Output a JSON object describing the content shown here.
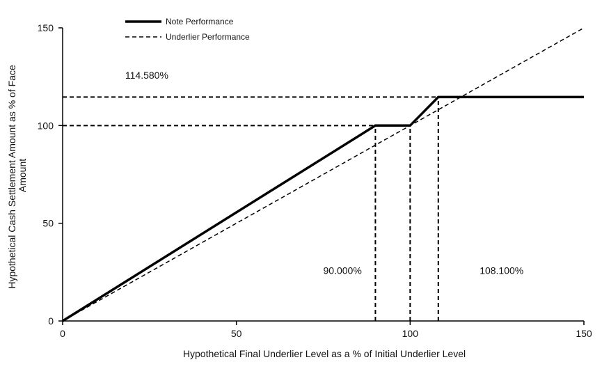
{
  "chart_data": {
    "type": "line",
    "xlabel": "Hypothetical Final Underlier Level as a % of Initial Underlier Level",
    "ylabel_lines": [
      "Hypothetical Cash Settlement Amount as % of Face",
      "Amount"
    ],
    "xlim": [
      0,
      150
    ],
    "ylim": [
      0,
      150
    ],
    "x_ticks": [
      0,
      50,
      100,
      150
    ],
    "y_ticks": [
      0,
      50,
      100,
      150
    ],
    "grid": false,
    "legend_position": "top-left",
    "series": [
      {
        "name": "Note Performance",
        "style": "solid",
        "color": "#000000",
        "x": [
          0,
          90,
          100,
          108.1,
          150
        ],
        "y": [
          0,
          100,
          100,
          114.58,
          114.58
        ]
      },
      {
        "name": "Underlier Performance",
        "style": "dashed",
        "color": "#000000",
        "x": [
          0,
          150
        ],
        "y": [
          0,
          150
        ]
      }
    ],
    "reference_lines": [
      {
        "kind": "horizontal",
        "y": 114.58,
        "x_from": 0,
        "x_to": 108.1
      },
      {
        "kind": "horizontal",
        "y": 100,
        "x_from": 0,
        "x_to": 90
      },
      {
        "kind": "vertical",
        "x": 90,
        "y_from": 0,
        "y_to": 100
      },
      {
        "kind": "vertical",
        "x": 100,
        "y_from": 0,
        "y_to": 100
      },
      {
        "kind": "vertical",
        "x": 108.1,
        "y_from": 0,
        "y_to": 114.58
      }
    ],
    "annotations": [
      {
        "text": "114.580%",
        "x": 18,
        "y": 124
      },
      {
        "text": "90.000%",
        "x": 75,
        "y": 24
      },
      {
        "text": "108.100%",
        "x": 120,
        "y": 24
      }
    ]
  }
}
